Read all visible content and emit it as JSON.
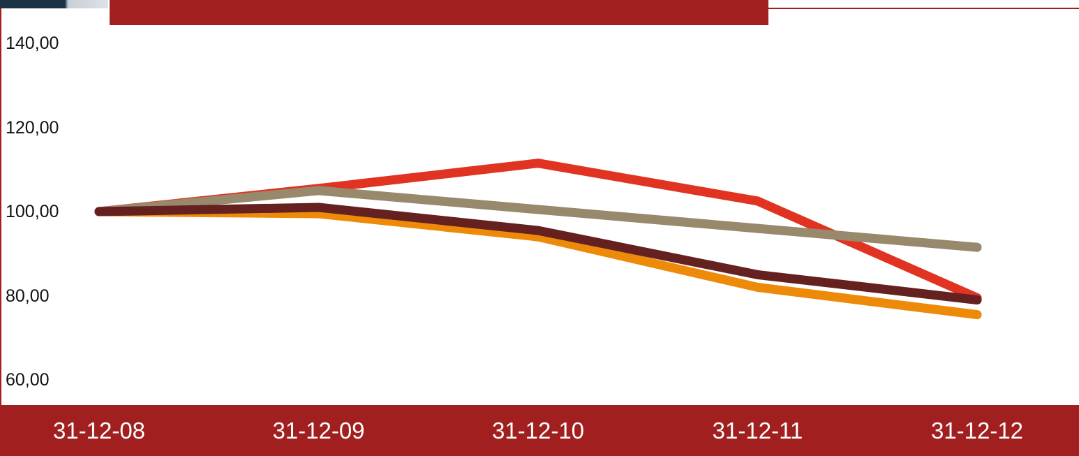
{
  "chart_data": {
    "type": "line",
    "title": "",
    "xlabel": "",
    "ylabel": "",
    "categories": [
      "31-12-08",
      "31-12-09",
      "31-12-10",
      "31-12-11",
      "31-12-12"
    ],
    "y_ticks": [
      "140,00",
      "120,00",
      "100,00",
      "80,00",
      "60,00"
    ],
    "y_tick_values": [
      140,
      120,
      100,
      80,
      60
    ],
    "ylim": [
      60,
      140
    ],
    "grid": false,
    "legend": "none",
    "series": [
      {
        "color": "#e03322",
        "values": [
          100.0,
          105.5,
          111.5,
          102.5,
          79.5
        ]
      },
      {
        "color": "#ee8a0a",
        "values": [
          100.0,
          99.5,
          94.0,
          82.0,
          75.5
        ]
      },
      {
        "color": "#98896c",
        "values": [
          100.0,
          105.0,
          100.5,
          96.0,
          91.5
        ]
      },
      {
        "color": "#652020",
        "values": [
          100.0,
          101.0,
          95.5,
          85.0,
          79.0
        ]
      }
    ]
  },
  "colors": {
    "band": "#a11f1f",
    "axis_text": "#ffffff",
    "tick_text": "#111111"
  }
}
